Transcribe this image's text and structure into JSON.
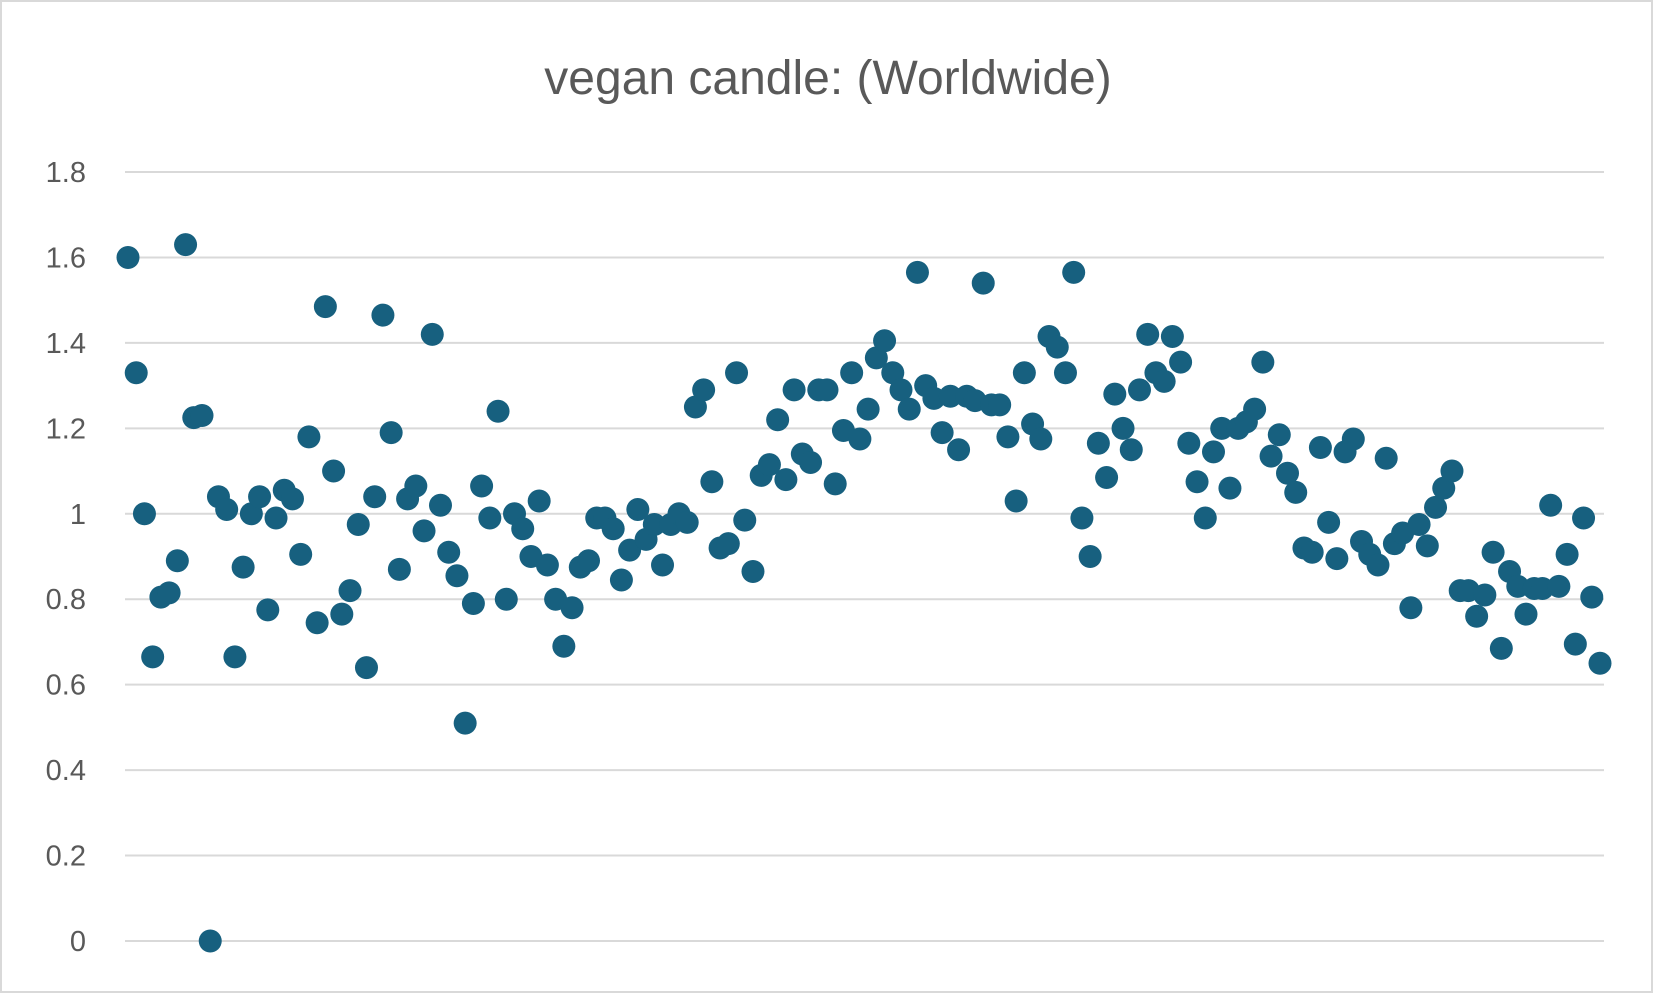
{
  "chart_data": {
    "type": "scatter",
    "title": "vegan candle: (Worldwide)",
    "xlabel": "",
    "ylabel": "",
    "ylim": [
      0,
      1.8
    ],
    "yticks": [
      "0",
      "0.2",
      "0.4",
      "0.6",
      "0.8",
      "1",
      "1.2",
      "1.4",
      "1.6",
      "1.8"
    ],
    "grid": true,
    "legend": "none",
    "color": "#17607f",
    "series": [
      {
        "name": "vegan candle",
        "values": [
          1.6,
          1.33,
          1.0,
          0.665,
          0.805,
          0.815,
          0.89,
          1.63,
          1.225,
          1.23,
          0.0,
          1.04,
          1.01,
          0.665,
          0.875,
          1.0,
          1.04,
          0.775,
          0.99,
          1.055,
          1.035,
          0.905,
          1.18,
          0.745,
          1.485,
          1.1,
          0.765,
          0.82,
          0.975,
          0.64,
          1.04,
          1.465,
          1.19,
          0.87,
          1.035,
          1.065,
          0.96,
          1.42,
          1.02,
          0.91,
          0.855,
          0.51,
          0.79,
          1.065,
          0.99,
          1.24,
          0.8,
          1.0,
          0.965,
          0.9,
          1.03,
          0.88,
          0.8,
          0.69,
          0.78,
          0.875,
          0.89,
          0.99,
          0.99,
          0.965,
          0.845,
          0.915,
          1.01,
          0.94,
          0.975,
          0.88,
          0.975,
          1.0,
          0.98,
          1.25,
          1.29,
          1.075,
          0.92,
          0.93,
          1.33,
          0.985,
          0.865,
          1.09,
          1.115,
          1.22,
          1.08,
          1.29,
          1.14,
          1.12,
          1.29,
          1.29,
          1.07,
          1.195,
          1.33,
          1.175,
          1.245,
          1.365,
          1.405,
          1.33,
          1.29,
          1.245,
          1.565,
          1.3,
          1.27,
          1.19,
          1.275,
          1.15,
          1.275,
          1.265,
          1.54,
          1.255,
          1.255,
          1.18,
          1.03,
          1.33,
          1.21,
          1.175,
          1.415,
          1.39,
          1.33,
          1.565,
          0.99,
          0.9,
          1.165,
          1.085,
          1.28,
          1.2,
          1.15,
          1.29,
          1.42,
          1.33,
          1.31,
          1.415,
          1.355,
          1.165,
          1.075,
          0.99,
          1.145,
          1.2,
          1.06,
          1.2,
          1.215,
          1.245,
          1.355,
          1.135,
          1.185,
          1.095,
          1.05,
          0.92,
          0.91,
          1.155,
          0.98,
          0.895,
          1.145,
          1.175,
          0.935,
          0.905,
          0.88,
          1.13,
          0.93,
          0.955,
          0.78,
          0.975,
          0.925,
          1.015,
          1.06,
          1.1,
          0.82,
          0.82,
          0.76,
          0.81,
          0.91,
          0.685,
          0.865,
          0.83,
          0.765,
          0.825,
          0.825,
          1.02,
          0.83,
          0.905,
          0.695,
          0.99,
          0.805,
          0.65
        ]
      }
    ]
  }
}
